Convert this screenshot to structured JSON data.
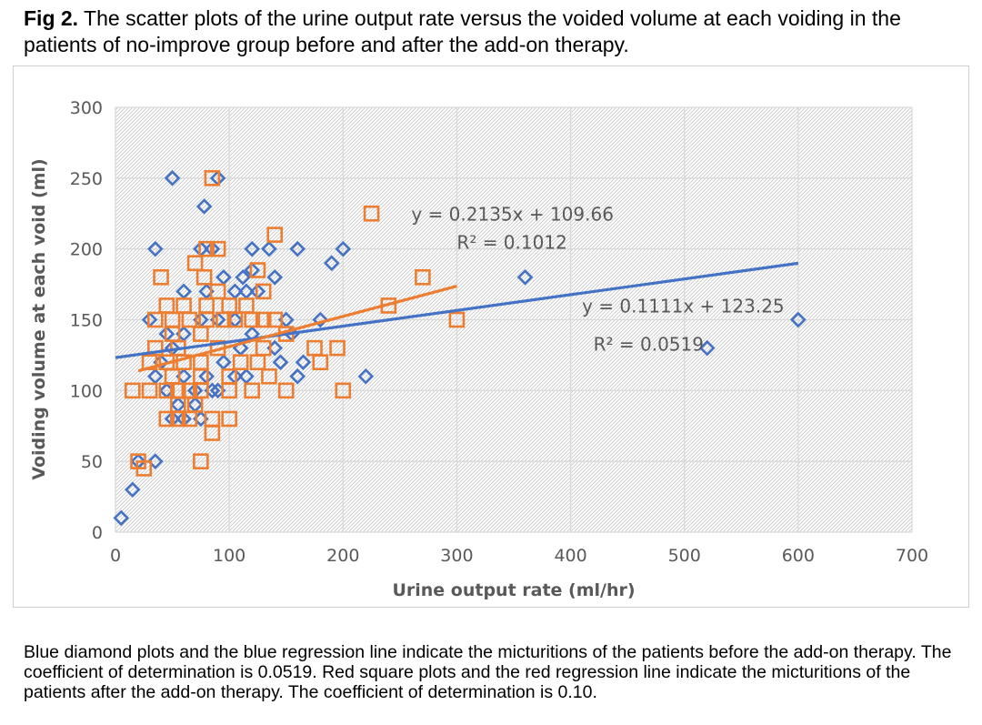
{
  "figure": {
    "label": "Fig 2.",
    "title": "The scatter plots of the urine output rate versus the voided volume at each voiding in the patients of no-improve group before and after the add-on therapy.",
    "description": "Blue diamond plots and the blue regression line indicate the micturitions of the patients before the add-on therapy. The coefficient of determination is 0.0519. Red square plots and the red regression line indicate the micturitions of the patients after the add-on therapy. The coefficient of determination is 0.10."
  },
  "chart_data": {
    "type": "scatter",
    "xlabel": "Urine output rate  (ml/hr)",
    "ylabel": "Voiding volume at each void  (ml)",
    "xlim": [
      0,
      700
    ],
    "ylim": [
      0,
      300
    ],
    "xticks": [
      0,
      100,
      200,
      300,
      400,
      500,
      600,
      700
    ],
    "yticks": [
      0,
      50,
      100,
      150,
      200,
      250,
      300
    ],
    "grid": true,
    "colors": {
      "before": "#4472C4",
      "after": "#ED7D31",
      "grid": "#d9d9d9",
      "plot_background": "#e9e9e9"
    },
    "series": [
      {
        "marker": "diamond",
        "color": "#4472C4",
        "points": [
          [
            5,
            10
          ],
          [
            15,
            30
          ],
          [
            35,
            50
          ],
          [
            20,
            50
          ],
          [
            35,
            200
          ],
          [
            50,
            250
          ],
          [
            90,
            250
          ],
          [
            78,
            230
          ],
          [
            75,
            200
          ],
          [
            85,
            200
          ],
          [
            120,
            200
          ],
          [
            135,
            200
          ],
          [
            160,
            200
          ],
          [
            200,
            200
          ],
          [
            190,
            190
          ],
          [
            95,
            180
          ],
          [
            112,
            180
          ],
          [
            120,
            185
          ],
          [
            140,
            180
          ],
          [
            360,
            180
          ],
          [
            60,
            170
          ],
          [
            80,
            170
          ],
          [
            105,
            170
          ],
          [
            115,
            170
          ],
          [
            125,
            170
          ],
          [
            90,
            150
          ],
          [
            30,
            150
          ],
          [
            45,
            140
          ],
          [
            60,
            140
          ],
          [
            75,
            150
          ],
          [
            105,
            150
          ],
          [
            150,
            150
          ],
          [
            180,
            150
          ],
          [
            600,
            150
          ],
          [
            520,
            130
          ],
          [
            50,
            130
          ],
          [
            110,
            130
          ],
          [
            140,
            130
          ],
          [
            145,
            120
          ],
          [
            95,
            120
          ],
          [
            80,
            110
          ],
          [
            105,
            110
          ],
          [
            115,
            110
          ],
          [
            160,
            110
          ],
          [
            220,
            110
          ],
          [
            35,
            110
          ],
          [
            40,
            120
          ],
          [
            60,
            110
          ],
          [
            85,
            100
          ],
          [
            90,
            100
          ],
          [
            55,
            90
          ],
          [
            70,
            90
          ],
          [
            75,
            80
          ],
          [
            50,
            80
          ],
          [
            60,
            80
          ],
          [
            45,
            100
          ],
          [
            70,
            100
          ],
          [
            155,
            140
          ],
          [
            165,
            120
          ],
          [
            120,
            140
          ]
        ]
      },
      {
        "marker": "square",
        "color": "#ED7D31",
        "points": [
          [
            20,
            50
          ],
          [
            25,
            45
          ],
          [
            75,
            50
          ],
          [
            85,
            70
          ],
          [
            85,
            250
          ],
          [
            225,
            225
          ],
          [
            140,
            210
          ],
          [
            80,
            200
          ],
          [
            90,
            200
          ],
          [
            125,
            185
          ],
          [
            270,
            180
          ],
          [
            40,
            180
          ],
          [
            70,
            190
          ],
          [
            78,
            180
          ],
          [
            130,
            170
          ],
          [
            90,
            170
          ],
          [
            45,
            160
          ],
          [
            60,
            160
          ],
          [
            80,
            160
          ],
          [
            100,
            160
          ],
          [
            115,
            160
          ],
          [
            240,
            160
          ],
          [
            300,
            150
          ],
          [
            35,
            150
          ],
          [
            50,
            150
          ],
          [
            65,
            150
          ],
          [
            80,
            150
          ],
          [
            95,
            150
          ],
          [
            105,
            150
          ],
          [
            120,
            150
          ],
          [
            130,
            150
          ],
          [
            140,
            150
          ],
          [
            50,
            140
          ],
          [
            75,
            140
          ],
          [
            150,
            140
          ],
          [
            35,
            130
          ],
          [
            55,
            130
          ],
          [
            90,
            130
          ],
          [
            130,
            130
          ],
          [
            175,
            130
          ],
          [
            195,
            130
          ],
          [
            30,
            120
          ],
          [
            45,
            120
          ],
          [
            60,
            120
          ],
          [
            75,
            120
          ],
          [
            110,
            120
          ],
          [
            125,
            120
          ],
          [
            180,
            120
          ],
          [
            50,
            110
          ],
          [
            75,
            110
          ],
          [
            100,
            110
          ],
          [
            135,
            110
          ],
          [
            15,
            100
          ],
          [
            30,
            100
          ],
          [
            45,
            100
          ],
          [
            55,
            100
          ],
          [
            65,
            100
          ],
          [
            75,
            100
          ],
          [
            100,
            100
          ],
          [
            120,
            100
          ],
          [
            150,
            100
          ],
          [
            200,
            100
          ],
          [
            55,
            90
          ],
          [
            70,
            90
          ],
          [
            45,
            80
          ],
          [
            55,
            80
          ],
          [
            65,
            80
          ],
          [
            85,
            80
          ],
          [
            100,
            80
          ]
        ]
      }
    ],
    "trendlines": [
      {
        "series": 0,
        "slope": 0.1111,
        "intercept": 123.25,
        "x_range": [
          0,
          600
        ],
        "color": "#4472C4"
      },
      {
        "series": 1,
        "slope": 0.2135,
        "intercept": 109.66,
        "x_range": [
          20,
          300
        ],
        "color": "#ED7D31"
      }
    ],
    "annotations": [
      {
        "text": "y = 0.2135x + 109.66",
        "x": 260,
        "y": 220
      },
      {
        "text": "R² = 0.1012",
        "x": 300,
        "y": 200
      },
      {
        "text": "y = 0.1111x + 123.25",
        "x": 410,
        "y": 155
      },
      {
        "text": "R² = 0.0519",
        "x": 420,
        "y": 128
      }
    ]
  }
}
